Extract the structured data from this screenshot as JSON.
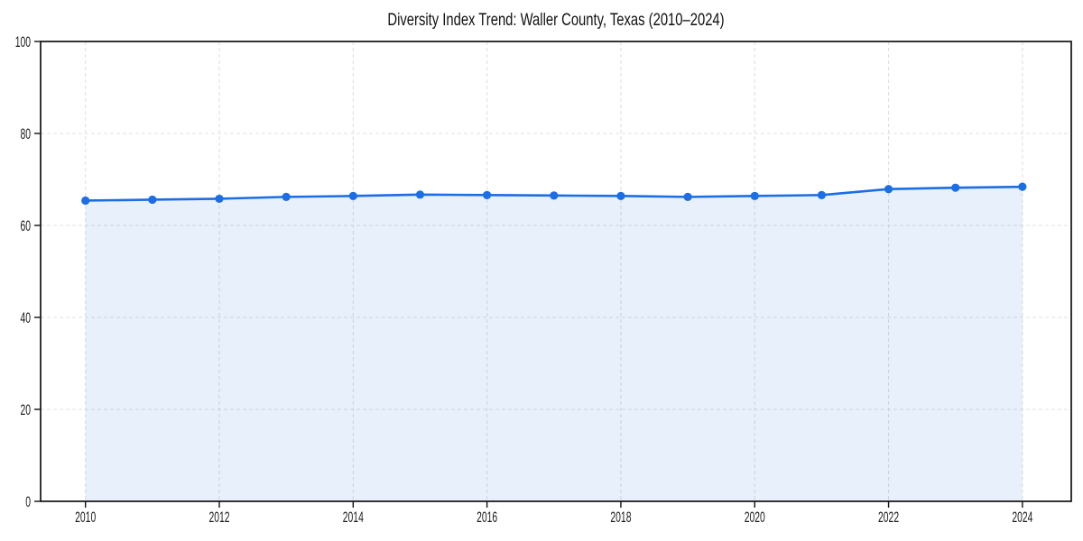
{
  "chart_data": {
    "type": "line",
    "title": "Diversity Index Trend: Waller County, Texas (2010–2024)",
    "x": [
      2010,
      2011,
      2012,
      2013,
      2014,
      2015,
      2016,
      2017,
      2018,
      2019,
      2020,
      2021,
      2022,
      2023,
      2024
    ],
    "values": [
      65.4,
      65.6,
      65.8,
      66.2,
      66.4,
      66.7,
      66.6,
      66.5,
      66.4,
      66.2,
      66.4,
      66.6,
      67.9,
      68.2,
      68.4
    ],
    "xlabel": "",
    "ylabel": "",
    "xlim": [
      2009.33,
      2024.73
    ],
    "ylim": [
      0,
      100
    ],
    "xticks": [
      2010,
      2012,
      2014,
      2016,
      2018,
      2020,
      2022,
      2024
    ],
    "yticks": [
      0,
      20,
      40,
      60,
      80,
      100
    ],
    "grid": true,
    "grid_style": "dashed",
    "legend": false,
    "line_color": "#1b6ee3",
    "marker_color": "#1b6ee3",
    "fill_color": "#1b6ee3",
    "fill_opacity": 0.1,
    "grid_color": "#e0e0e0",
    "spine_color": "#111111",
    "background": "#ffffff"
  }
}
